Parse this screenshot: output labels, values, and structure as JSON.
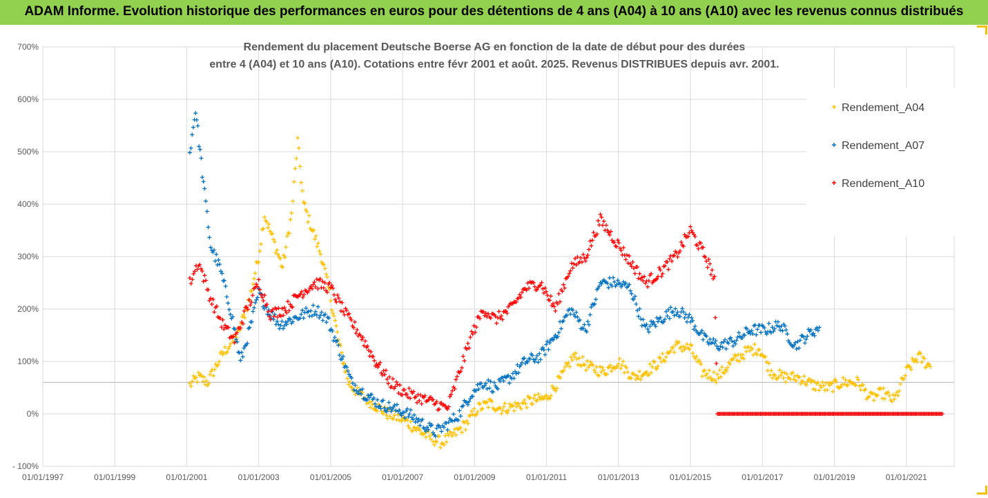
{
  "banner": {
    "title": "ADAM Informe. Evolution historique des performances en euros pour des détentions de 4 ans (A04) à 10 ans (A10) avec les revenus connus distribués",
    "background": "#92d050"
  },
  "chart_data": {
    "type": "scatter",
    "title_line1": "Rendement du placement Deutsche Boerse AG en fonction de la date de début pour des durées",
    "title_line2": "entre 4 (A04) et 10 ans (A10). Cotations entre févr 2001 et août. 2025. Revenus DISTRIBUES depuis avr. 2001.",
    "marker": "+",
    "ylim": [
      -100,
      700
    ],
    "y_ticks": [
      {
        "value": 700,
        "label": "700%"
      },
      {
        "value": 600,
        "label": "600%"
      },
      {
        "value": 500,
        "label": "500%"
      },
      {
        "value": 400,
        "label": "400%"
      },
      {
        "value": 300,
        "label": "300%"
      },
      {
        "value": 200,
        "label": "200%"
      },
      {
        "value": 100,
        "label": "100%"
      },
      {
        "value": 0,
        "label": "0%"
      },
      {
        "value": -100,
        "label": "- 100%"
      }
    ],
    "xlim": [
      "1997-01-01",
      "2022-05-01"
    ],
    "x_ticks": [
      "01/01/1997",
      "01/01/1999",
      "01/01/2001",
      "01/01/2003",
      "01/01/2005",
      "01/01/2007",
      "01/01/2009",
      "01/01/2011",
      "01/01/2013",
      "01/01/2015",
      "01/01/2017",
      "01/01/2019",
      "01/01/2021"
    ],
    "x_tick_dates": [
      "1997-01-01",
      "1999-01-01",
      "2001-01-01",
      "2003-01-01",
      "2005-01-01",
      "2007-01-01",
      "2009-01-01",
      "2011-01-01",
      "2013-01-01",
      "2015-01-01",
      "2017-01-01",
      "2019-01-01",
      "2021-01-01"
    ],
    "reference_line": 60,
    "grid": true,
    "legend_position": "right",
    "series": [
      {
        "name": "Rendement_A04",
        "color": "#ffc000",
        "points": [
          [
            "2001-02-01",
            55
          ],
          [
            "2001-05-01",
            70
          ],
          [
            "2001-08-01",
            60
          ],
          [
            "2002-01-01",
            115
          ],
          [
            "2002-06-01",
            150
          ],
          [
            "2002-10-01",
            220
          ],
          [
            "2003-01-01",
            300
          ],
          [
            "2003-03-01",
            380
          ],
          [
            "2003-06-01",
            330
          ],
          [
            "2003-09-01",
            280
          ],
          [
            "2003-12-01",
            380
          ],
          [
            "2004-02-01",
            520
          ],
          [
            "2004-04-01",
            400
          ],
          [
            "2004-07-01",
            350
          ],
          [
            "2004-10-01",
            300
          ],
          [
            "2005-01-01",
            220
          ],
          [
            "2005-04-01",
            130
          ],
          [
            "2005-07-01",
            60
          ],
          [
            "2005-10-01",
            40
          ],
          [
            "2006-03-01",
            20
          ],
          [
            "2006-08-01",
            0
          ],
          [
            "2007-01-01",
            -10
          ],
          [
            "2007-06-01",
            -30
          ],
          [
            "2007-10-01",
            -45
          ],
          [
            "2008-02-01",
            -55
          ],
          [
            "2008-06-01",
            -40
          ],
          [
            "2008-10-01",
            -20
          ],
          [
            "2009-02-01",
            10
          ],
          [
            "2009-06-01",
            20
          ],
          [
            "2009-10-01",
            10
          ],
          [
            "2010-03-01",
            15
          ],
          [
            "2010-08-01",
            25
          ],
          [
            "2011-01-01",
            30
          ],
          [
            "2011-06-01",
            70
          ],
          [
            "2011-10-01",
            110
          ],
          [
            "2012-03-01",
            90
          ],
          [
            "2012-08-01",
            80
          ],
          [
            "2013-01-01",
            100
          ],
          [
            "2013-06-01",
            70
          ],
          [
            "2013-10-01",
            80
          ],
          [
            "2014-03-01",
            100
          ],
          [
            "2014-08-01",
            130
          ],
          [
            "2015-01-01",
            125
          ],
          [
            "2015-05-01",
            80
          ],
          [
            "2015-10-01",
            70
          ],
          [
            "2016-03-01",
            100
          ],
          [
            "2016-08-01",
            120
          ],
          [
            "2016-12-01",
            125
          ],
          [
            "2017-04-01",
            80
          ],
          [
            "2017-08-01",
            70
          ],
          [
            "2018-01-01",
            70
          ],
          [
            "2018-06-01",
            55
          ],
          [
            "2018-11-01",
            50
          ],
          [
            "2019-04-01",
            60
          ],
          [
            "2019-09-01",
            60
          ],
          [
            "2020-01-01",
            30
          ],
          [
            "2020-05-01",
            40
          ],
          [
            "2020-09-01",
            25
          ],
          [
            "2021-01-01",
            80
          ],
          [
            "2021-05-01",
            110
          ],
          [
            "2021-09-01",
            90
          ]
        ]
      },
      {
        "name": "Rendement_A07",
        "color": "#0070c0",
        "points": [
          [
            "2001-02-01",
            500
          ],
          [
            "2001-04-01",
            580
          ],
          [
            "2001-07-01",
            420
          ],
          [
            "2001-09-01",
            320
          ],
          [
            "2001-12-01",
            280
          ],
          [
            "2002-04-01",
            190
          ],
          [
            "2002-07-01",
            100
          ],
          [
            "2002-10-01",
            160
          ],
          [
            "2003-01-01",
            230
          ],
          [
            "2003-04-01",
            200
          ],
          [
            "2003-08-01",
            170
          ],
          [
            "2003-12-01",
            180
          ],
          [
            "2004-04-01",
            190
          ],
          [
            "2004-08-01",
            200
          ],
          [
            "2004-12-01",
            180
          ],
          [
            "2005-04-01",
            120
          ],
          [
            "2005-08-01",
            60
          ],
          [
            "2005-12-01",
            40
          ],
          [
            "2006-05-01",
            20
          ],
          [
            "2006-10-01",
            10
          ],
          [
            "2007-03-01",
            0
          ],
          [
            "2007-08-01",
            -20
          ],
          [
            "2007-12-01",
            -35
          ],
          [
            "2008-04-01",
            -20
          ],
          [
            "2008-08-01",
            0
          ],
          [
            "2008-12-01",
            40
          ],
          [
            "2009-04-01",
            60
          ],
          [
            "2009-08-01",
            50
          ],
          [
            "2010-01-01",
            70
          ],
          [
            "2010-06-01",
            100
          ],
          [
            "2010-11-01",
            110
          ],
          [
            "2011-04-01",
            150
          ],
          [
            "2011-09-01",
            200
          ],
          [
            "2012-02-01",
            160
          ],
          [
            "2012-07-01",
            250
          ],
          [
            "2012-12-01",
            250
          ],
          [
            "2013-05-01",
            240
          ],
          [
            "2013-10-01",
            160
          ],
          [
            "2014-03-01",
            180
          ],
          [
            "2014-08-01",
            200
          ],
          [
            "2015-01-01",
            180
          ],
          [
            "2015-06-01",
            140
          ],
          [
            "2015-11-01",
            130
          ],
          [
            "2016-04-01",
            140
          ],
          [
            "2016-09-01",
            160
          ],
          [
            "2017-02-01",
            160
          ],
          [
            "2017-07-01",
            170
          ],
          [
            "2017-12-01",
            130
          ],
          [
            "2018-04-01",
            150
          ],
          [
            "2018-08-01",
            165
          ]
        ]
      },
      {
        "name": "Rendement_A10",
        "color": "#ff0000",
        "points": [
          [
            "2001-02-01",
            250
          ],
          [
            "2001-05-01",
            290
          ],
          [
            "2001-09-01",
            220
          ],
          [
            "2002-01-01",
            170
          ],
          [
            "2002-05-01",
            140
          ],
          [
            "2002-09-01",
            200
          ],
          [
            "2003-01-01",
            250
          ],
          [
            "2003-05-01",
            190
          ],
          [
            "2003-10-01",
            200
          ],
          [
            "2004-03-01",
            230
          ],
          [
            "2004-08-01",
            250
          ],
          [
            "2005-01-01",
            240
          ],
          [
            "2005-06-01",
            190
          ],
          [
            "2005-11-01",
            150
          ],
          [
            "2006-04-01",
            100
          ],
          [
            "2006-09-01",
            60
          ],
          [
            "2007-02-01",
            40
          ],
          [
            "2007-07-01",
            30
          ],
          [
            "2007-12-01",
            20
          ],
          [
            "2008-04-01",
            10
          ],
          [
            "2008-08-01",
            80
          ],
          [
            "2008-12-01",
            150
          ],
          [
            "2009-04-01",
            200
          ],
          [
            "2009-08-01",
            180
          ],
          [
            "2010-01-01",
            200
          ],
          [
            "2010-06-01",
            240
          ],
          [
            "2010-11-01",
            250
          ],
          [
            "2011-04-01",
            200
          ],
          [
            "2011-09-01",
            280
          ],
          [
            "2012-02-01",
            300
          ],
          [
            "2012-07-01",
            370
          ],
          [
            "2012-12-01",
            330
          ],
          [
            "2013-05-01",
            290
          ],
          [
            "2013-10-01",
            250
          ],
          [
            "2014-03-01",
            270
          ],
          [
            "2014-08-01",
            300
          ],
          [
            "2015-01-01",
            350
          ],
          [
            "2015-06-01",
            300
          ],
          [
            "2015-09-01",
            260
          ],
          [
            "2015-10-01",
            0
          ],
          [
            "2016-06-01",
            0
          ],
          [
            "2017-06-01",
            0
          ],
          [
            "2018-06-01",
            0
          ],
          [
            "2019-06-01",
            0
          ],
          [
            "2020-06-01",
            0
          ],
          [
            "2021-06-01",
            0
          ],
          [
            "2022-01-01",
            0
          ]
        ]
      }
    ]
  }
}
